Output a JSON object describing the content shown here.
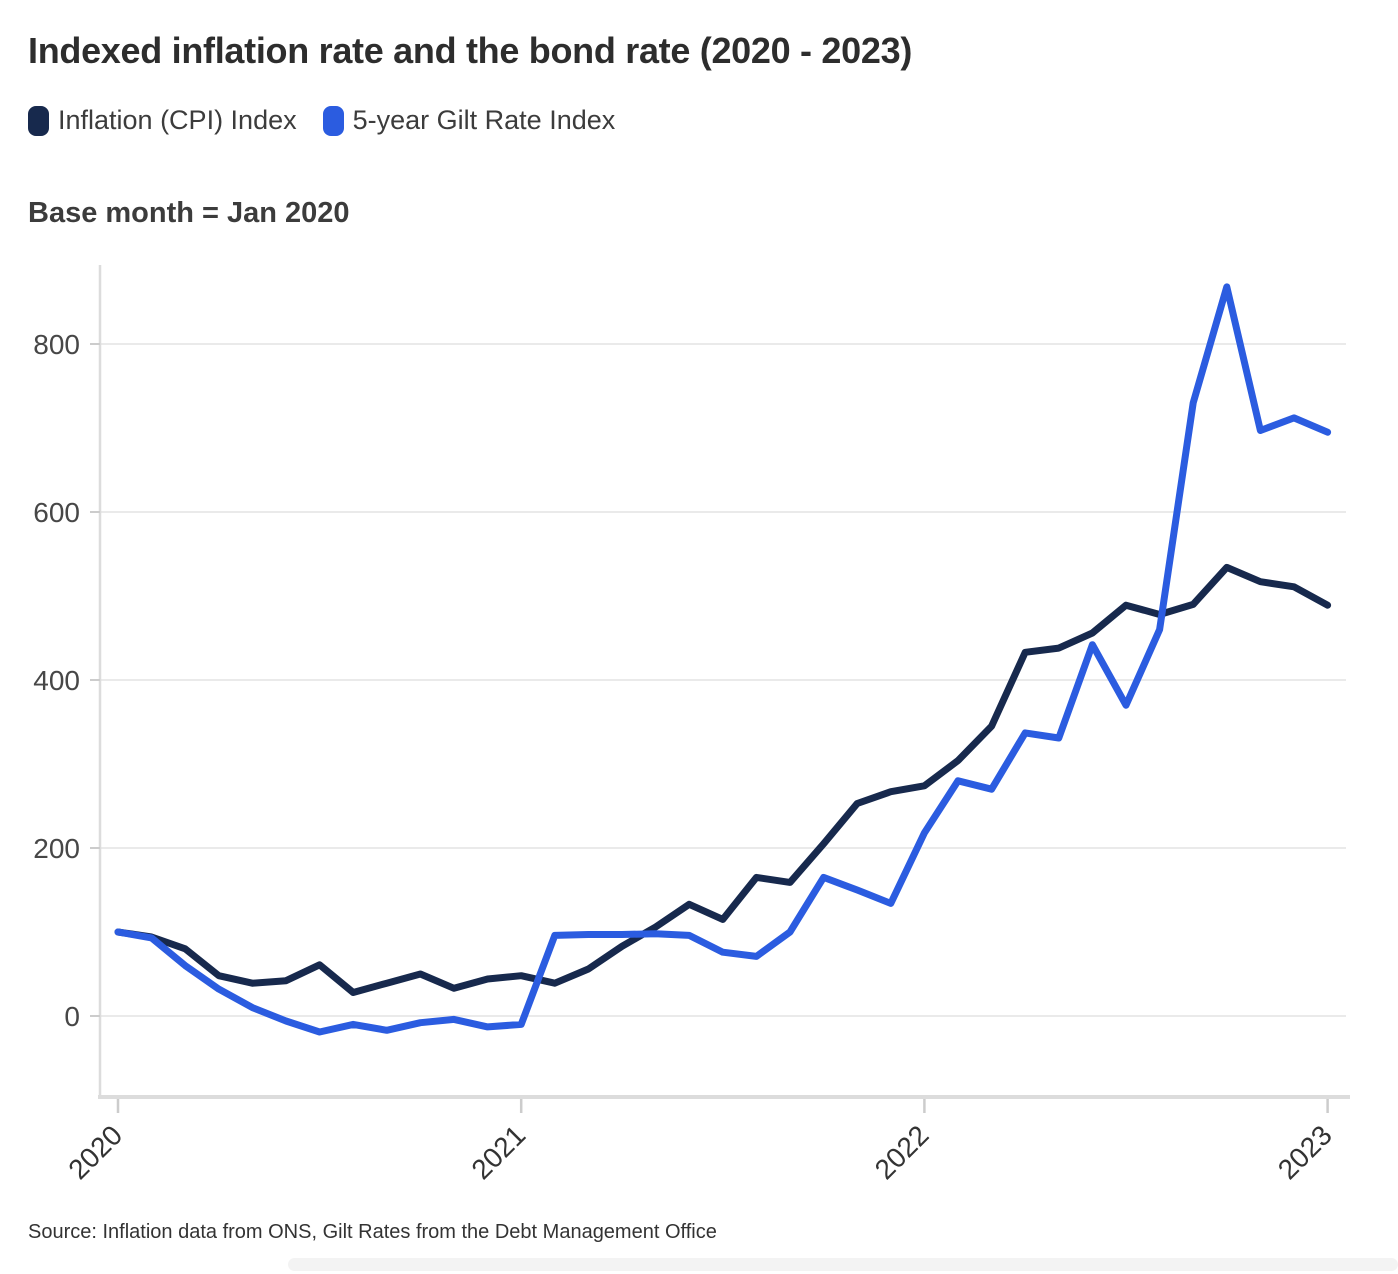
{
  "header": {
    "title": "Indexed inflation rate and the bond rate (2020 - 2023)",
    "subtitle": "Base month = Jan 2020",
    "source": "Source: Inflation data from ONS, Gilt Rates from the Debt Management Office"
  },
  "colors": {
    "cpi_line": "#17294d",
    "gilt_line": "#2b5ce0",
    "grid_line": "#eaeaea",
    "axis_line": "#dcdcdc",
    "tick_mark": "#cccccc",
    "tick_label": "#474747",
    "title_text": "#2d2d2d",
    "background": "#ffffff"
  },
  "chart_data": {
    "type": "line",
    "title": "Indexed inflation rate and the bond rate (2020 - 2023)",
    "subtitle": "Base month = Jan 2020",
    "source": "Source: Inflation data from ONS, Gilt Rates from the Debt Management Office",
    "x_unit": "month",
    "x_start": "Jan 2020",
    "x_end": "Jan 2023",
    "n_points": 37,
    "x_tick_labels": [
      "2020",
      "2021",
      "2022",
      "2023"
    ],
    "x_tick_month_index": [
      0,
      12,
      24,
      36
    ],
    "y_ticks": [
      0,
      200,
      400,
      600,
      800
    ],
    "ylim": [
      -98,
      894
    ],
    "grid": "horizontal",
    "legend_position": "top-left",
    "series": [
      {
        "name": "Inflation (CPI) Index",
        "color": "#17294d",
        "values": [
          100,
          94,
          80,
          48,
          39,
          42,
          61,
          28,
          39,
          50,
          33,
          44,
          48,
          39,
          56,
          83,
          106,
          133,
          115,
          165,
          159,
          205,
          253,
          267,
          274,
          304,
          345,
          433,
          438,
          456,
          489,
          478,
          490,
          534,
          517,
          511,
          489
        ]
      },
      {
        "name": "5-year Gilt Rate Index",
        "color": "#2b5ce0",
        "values": [
          100,
          93,
          60,
          32,
          10,
          -6,
          -19,
          -10,
          -17,
          -8,
          -4,
          -13,
          -10,
          96,
          97,
          97,
          98,
          96,
          76,
          71,
          100,
          165,
          150,
          134,
          218,
          280,
          270,
          337,
          331,
          442,
          370,
          460,
          730,
          868,
          697,
          712,
          695
        ]
      }
    ]
  }
}
